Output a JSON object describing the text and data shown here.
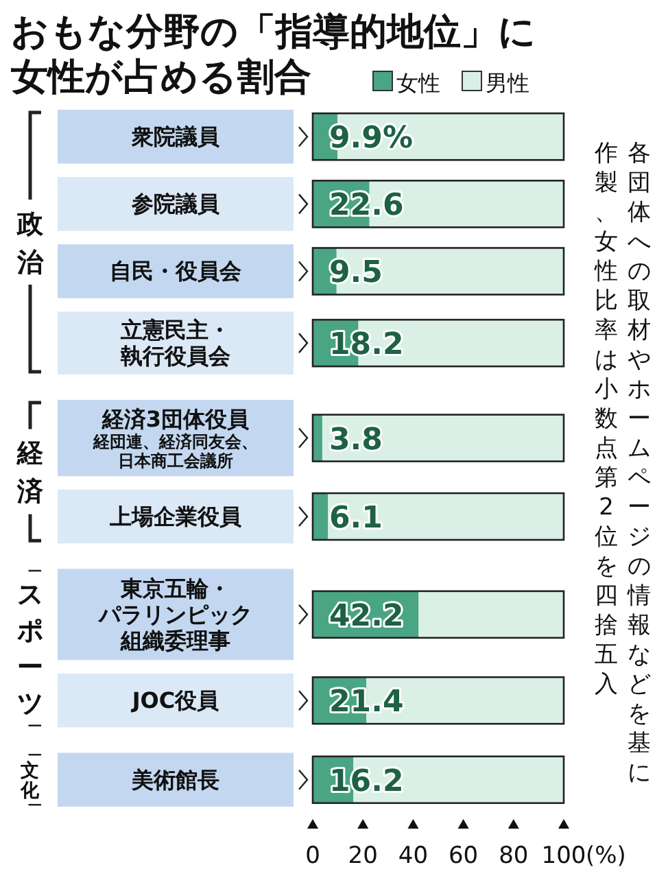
{
  "chart_data": {
    "type": "bar",
    "orientation": "horizontal",
    "stacked": true,
    "title": "おもな分野の「指導的地位」に女性が占める割合",
    "categories": [
      "衆院議員",
      "参院議員",
      "自民・役員会",
      "立憲民主・執行役員会",
      "経済3団体役員",
      "上場企業役員",
      "東京五輪・パラリンピック組織委理事",
      "JOC役員",
      "美術館長"
    ],
    "series": [
      {
        "name": "女性",
        "color": "#4aa584",
        "values": [
          9.9,
          22.6,
          9.5,
          18.2,
          3.8,
          6.1,
          42.2,
          21.4,
          16.2
        ],
        "value_labels": [
          "9.9%",
          "22.6",
          "9.5",
          "18.2",
          "3.8",
          "6.1",
          "42.2",
          "21.4",
          "16.2"
        ]
      },
      {
        "name": "男性",
        "color": "#daf0e6",
        "values": [
          90.1,
          77.4,
          90.5,
          81.8,
          96.2,
          93.9,
          57.8,
          78.6,
          83.8
        ]
      }
    ],
    "xlim": [
      0,
      100
    ],
    "xticks": [
      0,
      20,
      40,
      60,
      80,
      100
    ],
    "xlabel": "(%)",
    "legend": "top",
    "annotations": [
      "政治",
      "経済",
      "スポーツ",
      "文化",
      "各団体への取材やホームページの情報などを基に",
      "作製、女性比率は小数点第2位を四捨五入",
      "経団連、経済同友会、日本商工会議所"
    ]
  }
}
